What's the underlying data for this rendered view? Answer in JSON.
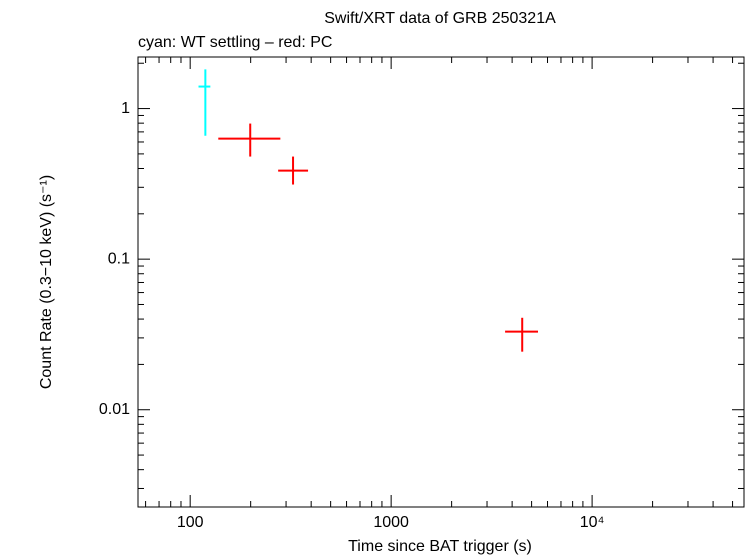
{
  "chart_data": {
    "type": "scatter",
    "title": "Swift/XRT data of GRB 250321A",
    "subtitle": "cyan: WT settling – red: PC",
    "x_label": "Time since BAT trigger (s)",
    "y_label": "Count Rate (0.3−10 keV) (s⁻¹)",
    "log_x": true,
    "log_y": true,
    "xlim": [
      55,
      57000
    ],
    "ylim": [
      0.00226,
      2.2
    ],
    "xticks": [
      100,
      1000,
      {
        "value": 10000,
        "label": "10⁴"
      }
    ],
    "yticks": [
      0.01,
      0.1,
      1
    ],
    "xticks_minor": [
      60,
      70,
      80,
      90,
      200,
      300,
      400,
      500,
      600,
      700,
      800,
      900,
      2000,
      3000,
      4000,
      5000,
      6000,
      7000,
      8000,
      9000,
      20000,
      30000,
      40000,
      50000
    ],
    "yticks_minor": [
      0.003,
      0.004,
      0.005,
      0.006,
      0.007,
      0.008,
      0.009,
      0.02,
      0.03,
      0.04,
      0.05,
      0.06,
      0.07,
      0.08,
      0.09,
      0.2,
      0.3,
      0.4,
      0.5,
      0.6,
      0.7,
      0.8,
      0.9,
      2
    ],
    "series": [
      {
        "color": "#00ffff",
        "x": [
          119
        ],
        "xlo": [
          110
        ],
        "xhi": [
          126
        ],
        "values": [
          1.4
        ],
        "ylo": [
          0.66
        ],
        "yhi": [
          1.82
        ]
      },
      {
        "color": "#ff0000",
        "x": [
          199,
          325,
          4490
        ],
        "xlo": [
          138,
          274,
          3690
        ],
        "xhi": [
          281,
          386,
          5380
        ],
        "values": [
          0.632,
          0.387,
          0.033
        ],
        "ylo": [
          0.48,
          0.313,
          0.0243
        ],
        "yhi": [
          0.795,
          0.48,
          0.0408
        ]
      }
    ]
  }
}
